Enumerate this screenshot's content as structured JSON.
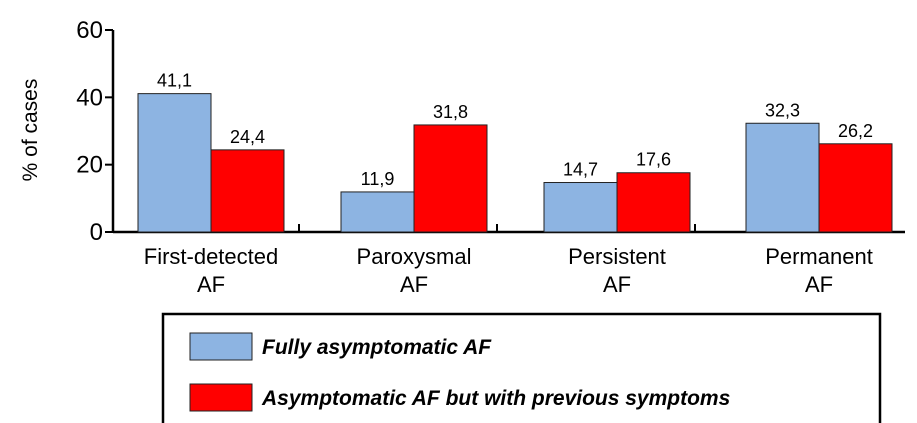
{
  "chart_data": {
    "type": "bar",
    "title": "",
    "xlabel": "",
    "ylabel": "% of cases",
    "ylim": [
      0,
      60
    ],
    "yticks": [
      0,
      20,
      40,
      60
    ],
    "categories": [
      [
        "First-detected",
        "AF"
      ],
      [
        "Paroxysmal",
        "AF"
      ],
      [
        "Persistent",
        "AF"
      ],
      [
        "Permanent",
        "AF"
      ]
    ],
    "series": [
      {
        "name": "Fully asymptomatic AF",
        "color": "#8db4e2",
        "values": [
          41.1,
          11.9,
          14.7,
          32.3
        ],
        "labels": [
          "41,1",
          "11,9",
          "14,7",
          "32,3"
        ]
      },
      {
        "name": "Asymptomatic AF but with previous symptoms",
        "color": "#ff0000",
        "values": [
          24.4,
          31.8,
          17.6,
          26.2
        ],
        "labels": [
          "24,4",
          "31,8",
          "17,6",
          "26,2"
        ]
      }
    ],
    "legend_position": "bottom",
    "grid": false
  }
}
